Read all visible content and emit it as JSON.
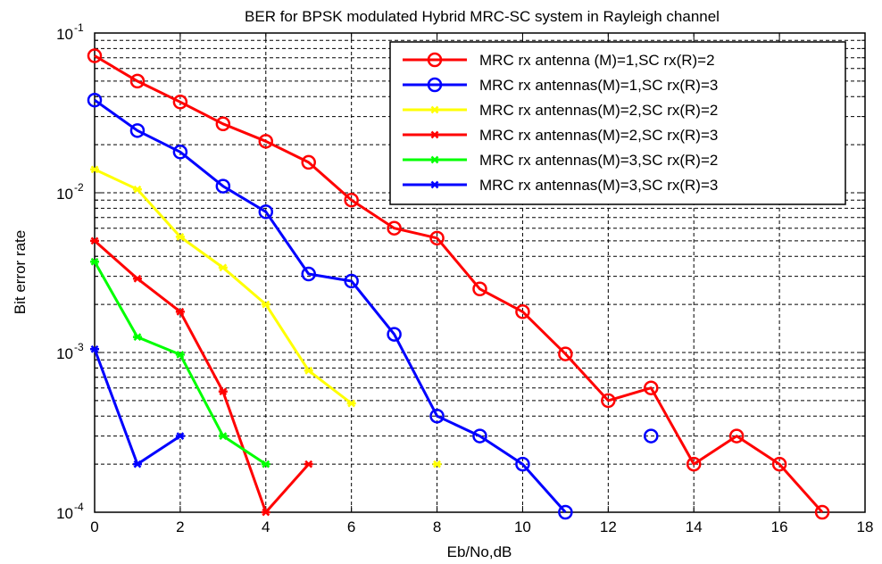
{
  "chart_data": {
    "type": "line",
    "title": "BER for BPSK modulated Hybrid MRC-SC system in Rayleigh channel",
    "xlabel": "Eb/No,dB",
    "ylabel": "Bit error rate",
    "xlim": [
      0,
      18
    ],
    "ylim": [
      0.0001,
      0.1
    ],
    "yscale": "log",
    "grid": true,
    "legend_position": "top-right",
    "xticks": [
      "0",
      "2",
      "4",
      "6",
      "8",
      "10",
      "12",
      "14",
      "16",
      "18"
    ],
    "yticks": [
      {
        "base": "10",
        "exp": "-1"
      },
      {
        "base": "10",
        "exp": "-2"
      },
      {
        "base": "10",
        "exp": "-3"
      },
      {
        "base": "10",
        "exp": "-4"
      }
    ],
    "series": [
      {
        "name": "MRC rx antenna (M)=1,SC rx(R)=2",
        "color": "#ff0000",
        "marker": "circle",
        "points": [
          [
            0,
            0.072
          ],
          [
            1,
            0.05
          ],
          [
            2,
            0.037
          ],
          [
            3,
            0.027
          ],
          [
            4,
            0.021
          ],
          [
            5,
            0.0155
          ],
          [
            6,
            0.009
          ],
          [
            7,
            0.006
          ],
          [
            8,
            0.0052
          ],
          [
            9,
            0.0025
          ],
          [
            10,
            0.0018
          ],
          [
            11,
            0.00098
          ],
          [
            12,
            0.0005
          ],
          [
            13,
            0.0006
          ],
          [
            14,
            0.0002
          ],
          [
            15,
            0.0003
          ],
          [
            16,
            0.0002
          ],
          [
            17,
            0.0001
          ]
        ]
      },
      {
        "name": "MRC rx antennas(M)=1,SC rx(R)=3",
        "color": "#0000ff",
        "marker": "circle",
        "points": [
          [
            0,
            0.038
          ],
          [
            1,
            0.0245
          ],
          [
            2,
            0.018
          ],
          [
            3,
            0.011
          ],
          [
            4,
            0.0076
          ],
          [
            5,
            0.0031
          ],
          [
            6,
            0.0028
          ],
          [
            7,
            0.0013
          ],
          [
            8,
            0.0004
          ],
          [
            9,
            0.0003
          ],
          [
            10,
            0.0002
          ],
          [
            11,
            0.0001
          ],
          [
            13,
            0.0003
          ]
        ]
      },
      {
        "name": "MRC rx antennas(M)=2,SC rx(R)=2",
        "color": "#ffff00",
        "marker": "star",
        "points": [
          [
            0,
            0.014
          ],
          [
            1,
            0.0105
          ],
          [
            2,
            0.0053
          ],
          [
            3,
            0.0034
          ],
          [
            4,
            0.002
          ],
          [
            5,
            0.00077
          ],
          [
            6,
            0.00048
          ],
          [
            8,
            0.0002
          ]
        ]
      },
      {
        "name": "MRC rx antennas(M)=2,SC rx(R)=3",
        "color": "#ff0000",
        "marker": "star",
        "points": [
          [
            0,
            0.005
          ],
          [
            1,
            0.0029
          ],
          [
            2,
            0.0018
          ],
          [
            3,
            0.00057
          ],
          [
            4,
            0.0001
          ],
          [
            5,
            0.0002
          ]
        ]
      },
      {
        "name": "MRC rx antennas(M)=3,SC rx(R)=2",
        "color": "#00ff00",
        "marker": "star",
        "points": [
          [
            0,
            0.0037
          ],
          [
            1,
            0.00125
          ],
          [
            2,
            0.00097
          ],
          [
            3,
            0.0003
          ],
          [
            4,
            0.0002
          ]
        ]
      },
      {
        "name": "MRC rx antennas(M)=3,SC rx(R)=3",
        "color": "#0000ff",
        "marker": "star",
        "points": [
          [
            0,
            0.00105
          ],
          [
            1,
            0.0002
          ],
          [
            2,
            0.0003
          ]
        ]
      }
    ]
  }
}
